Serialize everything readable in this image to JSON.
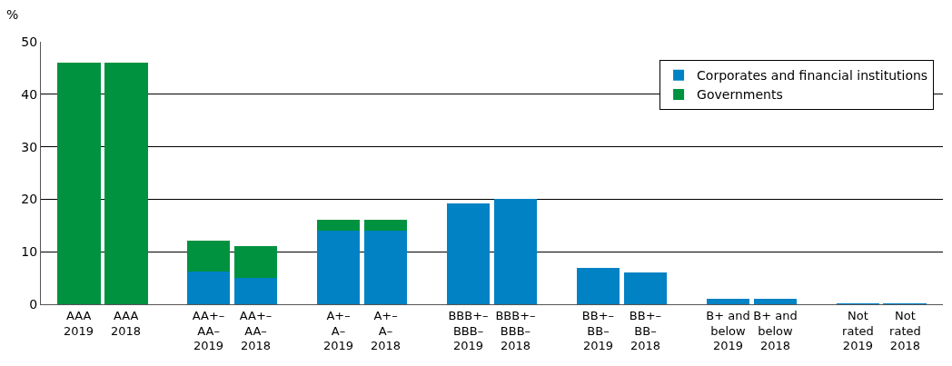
{
  "chart_data": {
    "type": "bar",
    "stacked": true,
    "ylabel": "%",
    "categories": [
      "AAA\n2019",
      "AAA\n2018",
      "AA+–\nAA–\n2019",
      "AA+–\nAA–\n2018",
      "A+–\nA–\n2019",
      "A+–\nA–\n2018",
      "BBB+–\nBBB–\n2019",
      "BBB+–\nBBB–\n2018",
      "BB+–\nBB–\n2019",
      "BB+–\nBB–\n2018",
      "B+ and\nbelow\n2019",
      "B+ and\nbelow\n2018",
      "Not\nrated\n2019",
      "Not\nrated\n2018"
    ],
    "series": [
      {
        "name": "Corporates and financial institutions",
        "color": "#0082c4",
        "values": [
          0,
          0,
          6.2,
          5.1,
          14,
          14,
          19.2,
          20,
          7,
          6.1,
          1,
          1,
          0.1,
          0.1
        ]
      },
      {
        "name": "Governments",
        "color": "#00923f",
        "values": [
          46,
          46,
          5.9,
          6,
          2.1,
          2.1,
          0,
          0,
          0,
          0,
          0,
          0,
          0,
          0
        ]
      }
    ],
    "ylim": [
      0,
      50
    ],
    "yticks": [
      0,
      10,
      20,
      30,
      40,
      50
    ],
    "grid": "y",
    "legend": "top right"
  }
}
